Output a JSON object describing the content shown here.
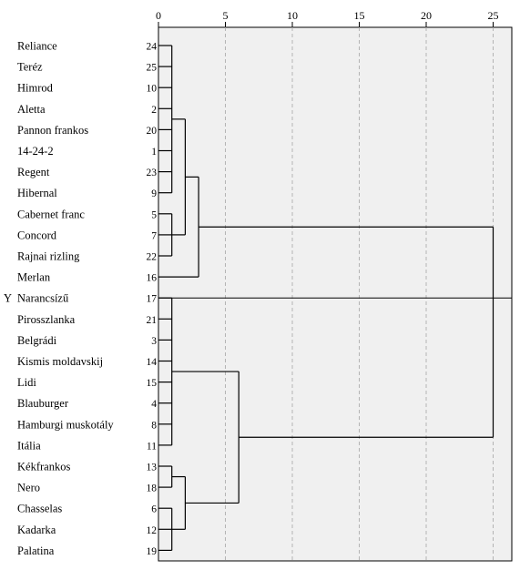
{
  "chart_data": {
    "type": "dendrogram",
    "title": "",
    "xlabel": "",
    "ylabel": "",
    "x_axis": {
      "ticks": [
        0,
        5,
        10,
        15,
        20,
        25
      ],
      "range": [
        0,
        25
      ],
      "gridlines": "dashed-vertical"
    },
    "selected_marker": "Y",
    "leaves": [
      {
        "name": "Reliance",
        "id": 24
      },
      {
        "name": "Teréz",
        "id": 25
      },
      {
        "name": "Himrod",
        "id": 10
      },
      {
        "name": "Aletta",
        "id": 2
      },
      {
        "name": "Pannon frankos",
        "id": 20
      },
      {
        "name": "14-24-2",
        "id": 1
      },
      {
        "name": "Regent",
        "id": 23
      },
      {
        "name": "Hibernal",
        "id": 9
      },
      {
        "name": "Cabernet franc",
        "id": 5
      },
      {
        "name": "Concord",
        "id": 7
      },
      {
        "name": "Rajnai rizling",
        "id": 22
      },
      {
        "name": "Merlan",
        "id": 16
      },
      {
        "name": "Narancsízű",
        "id": 17
      },
      {
        "name": "Pirosszlanka",
        "id": 21
      },
      {
        "name": "Belgrádi",
        "id": 3
      },
      {
        "name": "Kismis moldavskij",
        "id": 14
      },
      {
        "name": "Lidi",
        "id": 15
      },
      {
        "name": "Blauburger",
        "id": 4
      },
      {
        "name": "Hamburgi muskotály",
        "id": 8
      },
      {
        "name": "Itália",
        "id": 11
      },
      {
        "name": "Kékfrankos",
        "id": 13
      },
      {
        "name": "Nero",
        "id": 18
      },
      {
        "name": "Chasselas",
        "id": 6
      },
      {
        "name": "Kadarka",
        "id": 12
      },
      {
        "name": "Palatina",
        "id": 19
      }
    ],
    "merges": [
      {
        "members": [
          0,
          1,
          2,
          3,
          4,
          5,
          6,
          7
        ],
        "distance": 1
      },
      {
        "members": [
          8,
          9,
          10
        ],
        "distance": 1
      },
      {
        "members": [
          12,
          13,
          14,
          15,
          16,
          17,
          18,
          19
        ],
        "distance": 1
      },
      {
        "members": [
          20,
          21
        ],
        "distance": 1
      },
      {
        "members": [
          22,
          23,
          24
        ],
        "distance": 1
      },
      {
        "children": [
          "c0",
          "c1"
        ],
        "distance": 2
      },
      {
        "children": [
          "c3",
          "c4"
        ],
        "distance": 2
      },
      {
        "children": [
          "c5",
          11
        ],
        "distance": 3
      },
      {
        "children": [
          "c2",
          "c6"
        ],
        "distance": 6
      },
      {
        "children": [
          "c7",
          "c8"
        ],
        "distance": 25
      }
    ],
    "colors": {
      "plot_background": "#f0f0f0",
      "line": "#000000",
      "grid": "#b4b4b4"
    }
  }
}
